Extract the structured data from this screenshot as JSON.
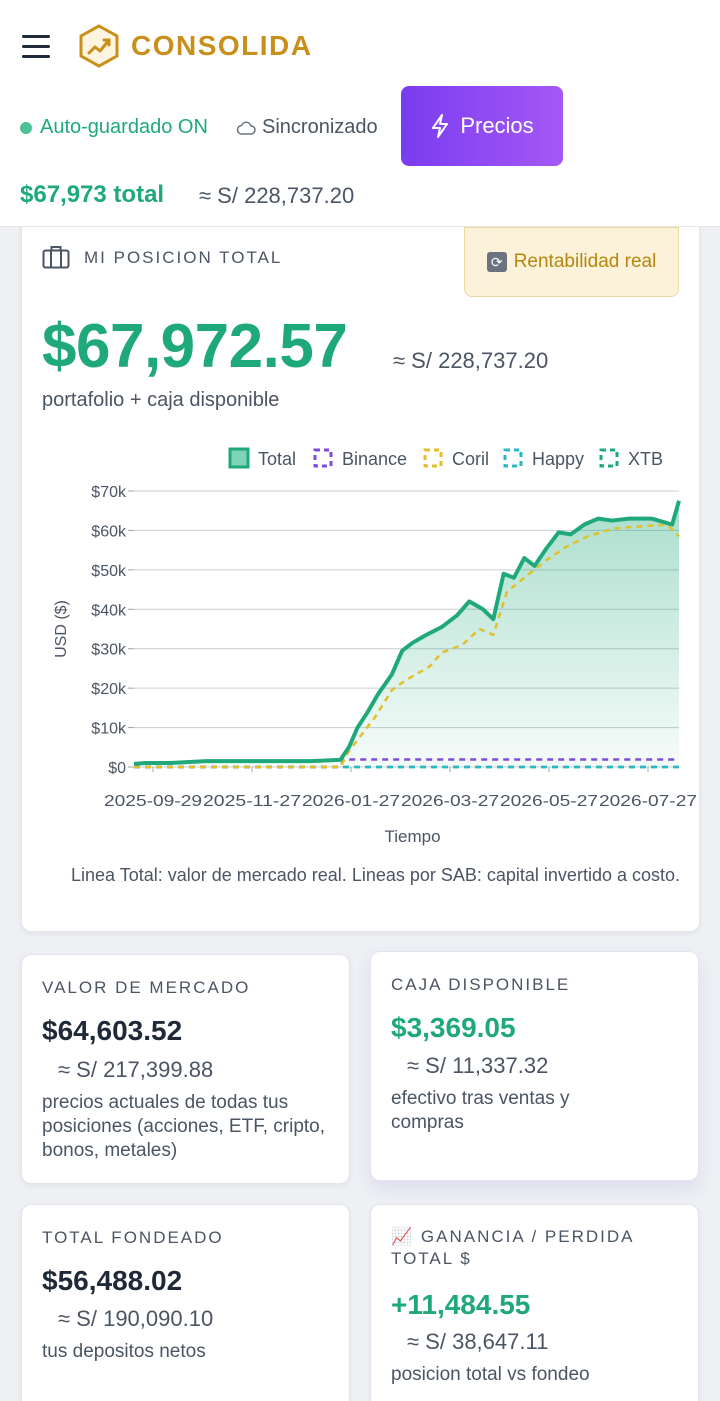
{
  "header": {
    "brand": "CONSOLIDA",
    "autosave": "Auto-guardado ON",
    "sync": "Sincronizado",
    "precios_label": "Precios",
    "total": "$67,973 total",
    "total_pen": "≈ S/ 228,737.20"
  },
  "position": {
    "title": "MI POSICION TOTAL",
    "rent_label": "Rentabilidad real",
    "value": "$67,972.57",
    "value_pen": "≈ S/ 228,737.20",
    "subtitle": "portafolio + caja disponible",
    "note": "Linea Total: valor de mercado real. Lineas por SAB: capital invertido a costo."
  },
  "chart_data": {
    "type": "line",
    "xlabel": "Tiempo",
    "ylabel": "USD ($)",
    "ylim": [
      0,
      70000
    ],
    "yticks": [
      "$0",
      "$10k",
      "$20k",
      "$30k",
      "$40k",
      "$50k",
      "$60k",
      "$70k"
    ],
    "xticks": [
      "2025-09-29",
      "2025-11-27",
      "2026-01-27",
      "2026-03-27",
      "2026-05-27",
      "2026-07-27"
    ],
    "legend_position": "top-right",
    "grid": true,
    "legend": [
      {
        "name": "Total",
        "color": "#1fa97a",
        "style": "solid"
      },
      {
        "name": "Binance",
        "color": "#7c4ddb",
        "style": "dashed"
      },
      {
        "name": "Coril",
        "color": "#e1c12a",
        "style": "dashed"
      },
      {
        "name": "Happy",
        "color": "#2bb8c0",
        "style": "dashed"
      },
      {
        "name": "XTB",
        "color": "#1fa97a",
        "style": "dashed"
      }
    ],
    "series": [
      {
        "name": "Total",
        "color": "#1fa97a",
        "x": [
          "2025-09-29",
          "2025-10-05",
          "2025-10-20",
          "2025-11-10",
          "2025-11-27",
          "2025-12-20",
          "2026-01-10",
          "2026-01-27",
          "2026-02-01",
          "2026-02-06",
          "2026-02-12",
          "2026-02-18",
          "2026-02-26",
          "2026-03-04",
          "2026-03-10",
          "2026-03-18",
          "2026-03-27",
          "2026-04-05",
          "2026-04-12",
          "2026-04-20",
          "2026-04-26",
          "2026-05-02",
          "2026-05-08",
          "2026-05-14",
          "2026-05-20",
          "2026-05-27",
          "2026-06-03",
          "2026-06-10",
          "2026-06-18",
          "2026-06-26",
          "2026-07-04",
          "2026-07-14",
          "2026-07-27",
          "2026-08-08",
          "2026-08-12"
        ],
        "values": [
          800,
          1000,
          1000,
          1500,
          1500,
          1500,
          1500,
          1800,
          5000,
          10000,
          14000,
          18500,
          23500,
          29500,
          31500,
          33500,
          35500,
          38500,
          42000,
          40000,
          37500,
          49000,
          48000,
          53000,
          51000,
          55500,
          59500,
          59000,
          61500,
          63000,
          62500,
          63000,
          63000,
          61500,
          67500
        ]
      },
      {
        "name": "Binance",
        "color": "#7c4ddb",
        "x": [
          "2025-09-29",
          "2026-01-27",
          "2026-01-29",
          "2026-08-12"
        ],
        "values": [
          0,
          0,
          1900,
          1900
        ]
      },
      {
        "name": "Coril",
        "color": "#e1c12a",
        "x": [
          "2025-09-29",
          "2025-11-27",
          "2026-01-27",
          "2026-02-01",
          "2026-02-08",
          "2026-02-16",
          "2026-02-26",
          "2026-03-06",
          "2026-03-20",
          "2026-03-27",
          "2026-04-08",
          "2026-04-18",
          "2026-04-26",
          "2026-05-04",
          "2026-05-14",
          "2026-05-27",
          "2026-06-08",
          "2026-06-20",
          "2026-07-05",
          "2026-07-20",
          "2026-08-05",
          "2026-08-12"
        ],
        "values": [
          0,
          0,
          0,
          4000,
          8000,
          12500,
          19500,
          22000,
          25500,
          29000,
          31000,
          35000,
          33500,
          44500,
          48000,
          52500,
          56000,
          58500,
          60500,
          61000,
          61500,
          58500
        ]
      },
      {
        "name": "Happy",
        "color": "#2bb8c0",
        "x": [
          "2025-09-29",
          "2026-08-12"
        ],
        "values": [
          0,
          0
        ]
      },
      {
        "name": "XTB",
        "color": "#1fa97a",
        "x": [
          "2025-09-29",
          "2026-08-12"
        ],
        "values": [
          0,
          0
        ]
      }
    ]
  },
  "stats": [
    {
      "label": "VALOR DE MERCADO",
      "value": "$64,603.52",
      "pen": "≈ S/ 217,399.88",
      "desc": "precios actuales de todas tus posiciones (acciones, ETF, cripto, bonos, metales)",
      "color": "#1f2937"
    },
    {
      "label": "CAJA DISPONIBLE",
      "value": "$3,369.05",
      "pen": "≈ S/ 11,337.32",
      "desc": "efectivo tras ventas y compras",
      "color": "#1fa97a"
    },
    {
      "label": "TOTAL FONDEADO",
      "value": "$56,488.02",
      "pen": "≈ S/ 190,090.10",
      "desc": "tus depositos netos",
      "color": "#1f2937"
    },
    {
      "label": "📈 GANANCIA / PERDIDA TOTAL $",
      "value": "+11,484.55",
      "pen": "≈ S/ 38,647.11",
      "desc": "posicion total vs fondeo",
      "color": "#1fa97a"
    }
  ]
}
